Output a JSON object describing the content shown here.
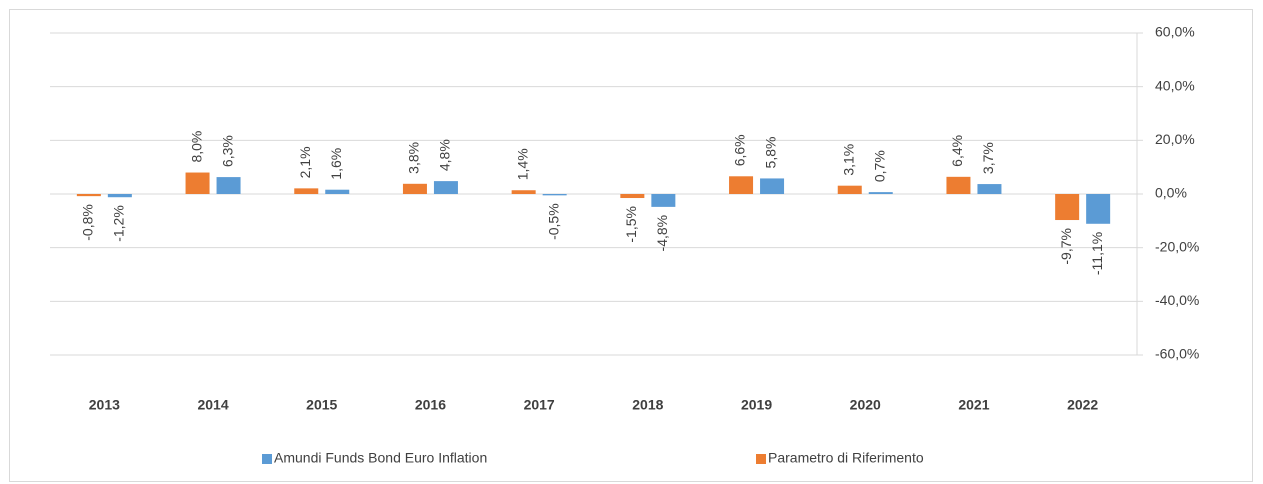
{
  "chart_data": {
    "type": "bar",
    "categories": [
      "2013",
      "2014",
      "2015",
      "2016",
      "2017",
      "2018",
      "2019",
      "2020",
      "2021",
      "2022"
    ],
    "series": [
      {
        "name": "Amundi Funds Bond Euro Inflation",
        "color": "#5b9bd5",
        "values": [
          -1.2,
          6.3,
          1.6,
          4.8,
          -0.5,
          -4.8,
          5.8,
          0.7,
          3.7,
          -11.1
        ],
        "value_labels": [
          "-1,2%",
          "6,3%",
          "1,6%",
          "4,8%",
          "-0,5%",
          "-4,8%",
          "5,8%",
          "0,7%",
          "3,7%",
          "-11,1%"
        ]
      },
      {
        "name": "Parametro di Riferimento",
        "color": "#ed7d31",
        "values": [
          -0.8,
          8.0,
          2.1,
          3.8,
          1.4,
          -1.5,
          6.6,
          3.1,
          6.4,
          -9.7
        ],
        "value_labels": [
          "-0,8%",
          "8,0%",
          "2,1%",
          "3,8%",
          "1,4%",
          "-1,5%",
          "6,6%",
          "3,1%",
          "6,4%",
          "-9,7%"
        ]
      }
    ],
    "ylim": [
      -60,
      60
    ],
    "yticks": [
      {
        "value": -60,
        "label": "-60,0%"
      },
      {
        "value": -40,
        "label": "-40,0%"
      },
      {
        "value": -20,
        "label": "-20,0%"
      },
      {
        "value": 0,
        "label": "0,0%"
      },
      {
        "value": 20,
        "label": "20,0%"
      },
      {
        "value": 40,
        "label": "40,0%"
      },
      {
        "value": 60,
        "label": "60,0%"
      }
    ],
    "grid": true,
    "y_axis_side": "right",
    "legend": "bottom"
  }
}
